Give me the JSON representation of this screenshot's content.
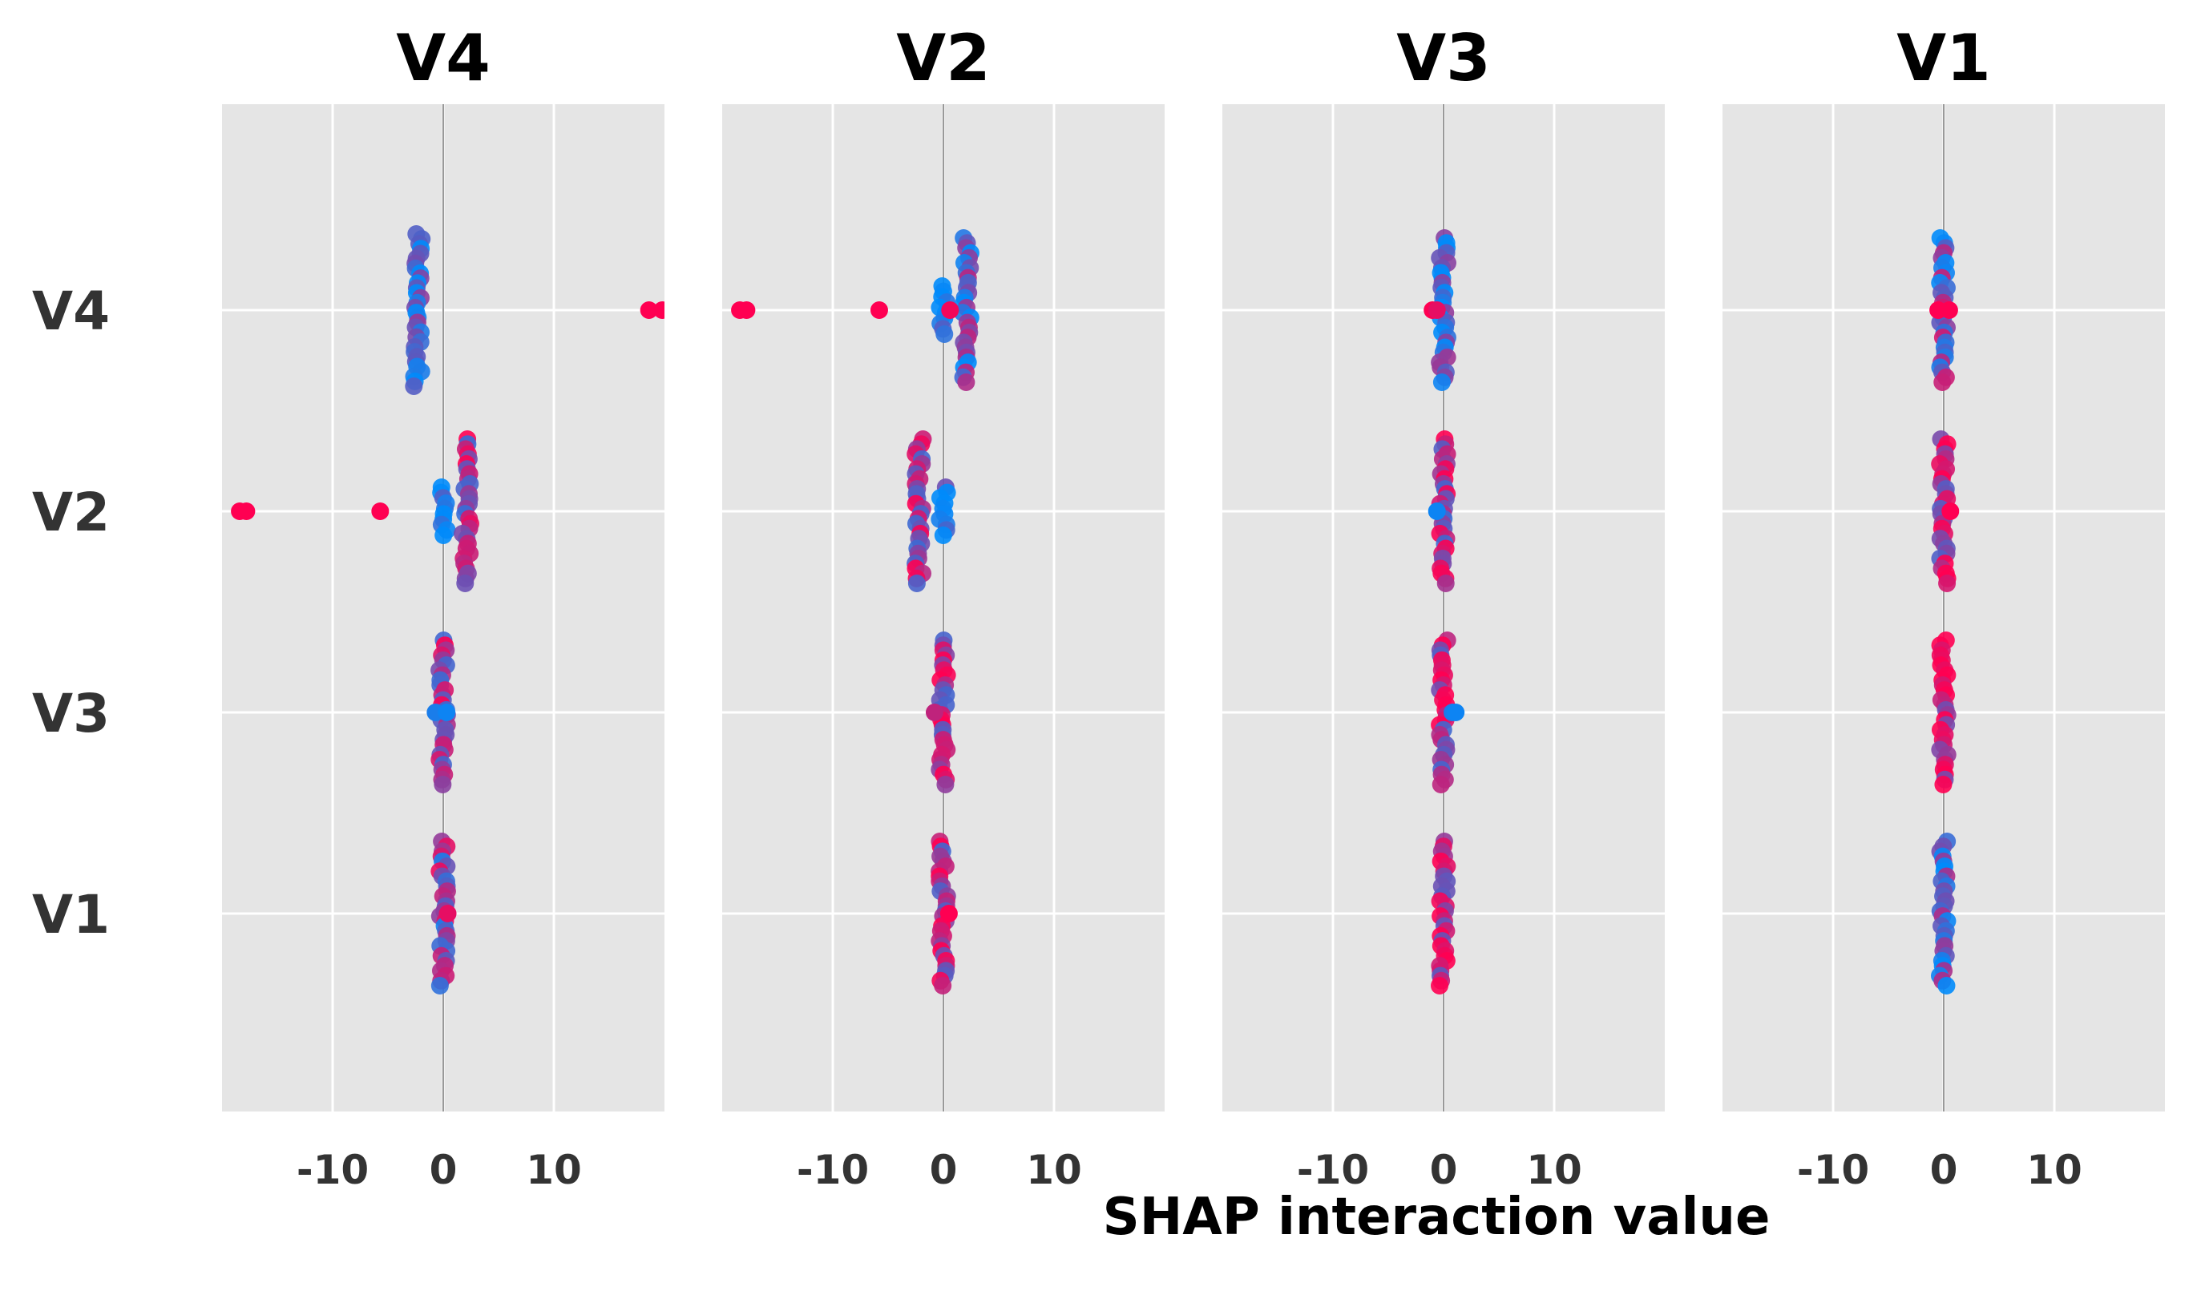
{
  "chart_data": {
    "type": "scatter",
    "title": "",
    "xlabel": "SHAP interaction value",
    "ylabel": "",
    "xlim": [
      -20,
      20
    ],
    "features": [
      "V4",
      "V2",
      "V3",
      "V1"
    ],
    "xticks": [
      -10,
      0,
      10
    ],
    "xtick_labels": [
      "-10",
      "0",
      "10"
    ],
    "grid": true,
    "colors": {
      "background": "#e5e5e5",
      "grid": "#ffffff",
      "zero_line": "#999999",
      "low": "#008bfb",
      "high": "#ff0052",
      "text_axis": "#333333",
      "text_title": "#000000"
    },
    "panels": [
      {
        "title": "V4",
        "rows": [
          {
            "feature": "V4",
            "clusters": [
              {
                "x": -2.3,
                "spread": 0.19,
                "mix": 0.18
              }
            ],
            "outliers": [
              {
                "x": 18.6,
                "mix": 1.0
              },
              {
                "x": 19.8,
                "mix": 1.0
              }
            ]
          },
          {
            "feature": "V2",
            "clusters": [
              {
                "x": 0.0,
                "spread": 0.06,
                "mix": 0.05
              },
              {
                "x": 2.1,
                "spread": 0.18,
                "mix": 0.65
              }
            ],
            "outliers": [
              {
                "x": -18.4,
                "mix": 1.0
              },
              {
                "x": -17.8,
                "mix": 1.0
              },
              {
                "x": -5.7,
                "mix": 1.0
              }
            ]
          },
          {
            "feature": "V3",
            "clusters": [
              {
                "x": 0.0,
                "spread": 0.18,
                "mix": 0.6
              }
            ],
            "outliers": [
              {
                "x": -0.7,
                "mix": 0.1
              },
              {
                "x": 0.3,
                "mix": 0.05
              }
            ]
          },
          {
            "feature": "V1",
            "clusters": [
              {
                "x": 0.0,
                "spread": 0.18,
                "mix": 0.5
              }
            ],
            "outliers": [
              {
                "x": 0.4,
                "mix": 0.9
              }
            ]
          }
        ]
      },
      {
        "title": "V2",
        "rows": [
          {
            "feature": "V4",
            "clusters": [
              {
                "x": 0.0,
                "spread": 0.06,
                "mix": 0.05
              },
              {
                "x": 2.1,
                "spread": 0.18,
                "mix": 0.3
              }
            ],
            "outliers": [
              {
                "x": -18.4,
                "mix": 1.0
              },
              {
                "x": -17.8,
                "mix": 1.0
              },
              {
                "x": -5.8,
                "mix": 1.0
              },
              {
                "x": 0.6,
                "mix": 0.95
              }
            ]
          },
          {
            "feature": "V2",
            "clusters": [
              {
                "x": -2.2,
                "spread": 0.18,
                "mix": 0.68
              },
              {
                "x": 0.0,
                "spread": 0.06,
                "mix": 0.05
              }
            ],
            "outliers": []
          },
          {
            "feature": "V3",
            "clusters": [
              {
                "x": 0.0,
                "spread": 0.18,
                "mix": 0.6
              }
            ],
            "outliers": [
              {
                "x": -0.8,
                "mix": 0.75
              }
            ]
          },
          {
            "feature": "V1",
            "clusters": [
              {
                "x": 0.0,
                "spread": 0.18,
                "mix": 0.7
              }
            ],
            "outliers": [
              {
                "x": 0.5,
                "mix": 1.0
              }
            ]
          }
        ]
      },
      {
        "title": "V3",
        "rows": [
          {
            "feature": "V4",
            "clusters": [
              {
                "x": 0.0,
                "spread": 0.18,
                "mix": 0.18
              }
            ],
            "outliers": [
              {
                "x": -1.0,
                "mix": 1.0
              },
              {
                "x": -0.6,
                "mix": 0.9
              }
            ]
          },
          {
            "feature": "V2",
            "clusters": [
              {
                "x": 0.0,
                "spread": 0.18,
                "mix": 0.6
              }
            ],
            "outliers": [
              {
                "x": -0.6,
                "mix": 0.05
              }
            ]
          },
          {
            "feature": "V3",
            "clusters": [
              {
                "x": 0.0,
                "spread": 0.18,
                "mix": 0.7
              }
            ],
            "outliers": [
              {
                "x": 0.8,
                "mix": 0.1
              },
              {
                "x": 1.1,
                "mix": 0.05
              }
            ]
          },
          {
            "feature": "V1",
            "clusters": [
              {
                "x": 0.0,
                "spread": 0.18,
                "mix": 0.8
              }
            ],
            "outliers": []
          }
        ]
      },
      {
        "title": "V1",
        "rows": [
          {
            "feature": "V4",
            "clusters": [
              {
                "x": 0.0,
                "spread": 0.18,
                "mix": 0.4
              }
            ],
            "outliers": [
              {
                "x": -0.5,
                "mix": 1.0
              },
              {
                "x": 0.5,
                "mix": 1.0
              }
            ]
          },
          {
            "feature": "V2",
            "clusters": [
              {
                "x": 0.0,
                "spread": 0.18,
                "mix": 0.75
              }
            ],
            "outliers": [
              {
                "x": 0.6,
                "mix": 1.0
              }
            ]
          },
          {
            "feature": "V3",
            "clusters": [
              {
                "x": 0.0,
                "spread": 0.18,
                "mix": 0.85
              }
            ],
            "outliers": []
          },
          {
            "feature": "V1",
            "clusters": [
              {
                "x": 0.0,
                "spread": 0.18,
                "mix": 0.3
              }
            ],
            "outliers": []
          }
        ]
      }
    ]
  }
}
